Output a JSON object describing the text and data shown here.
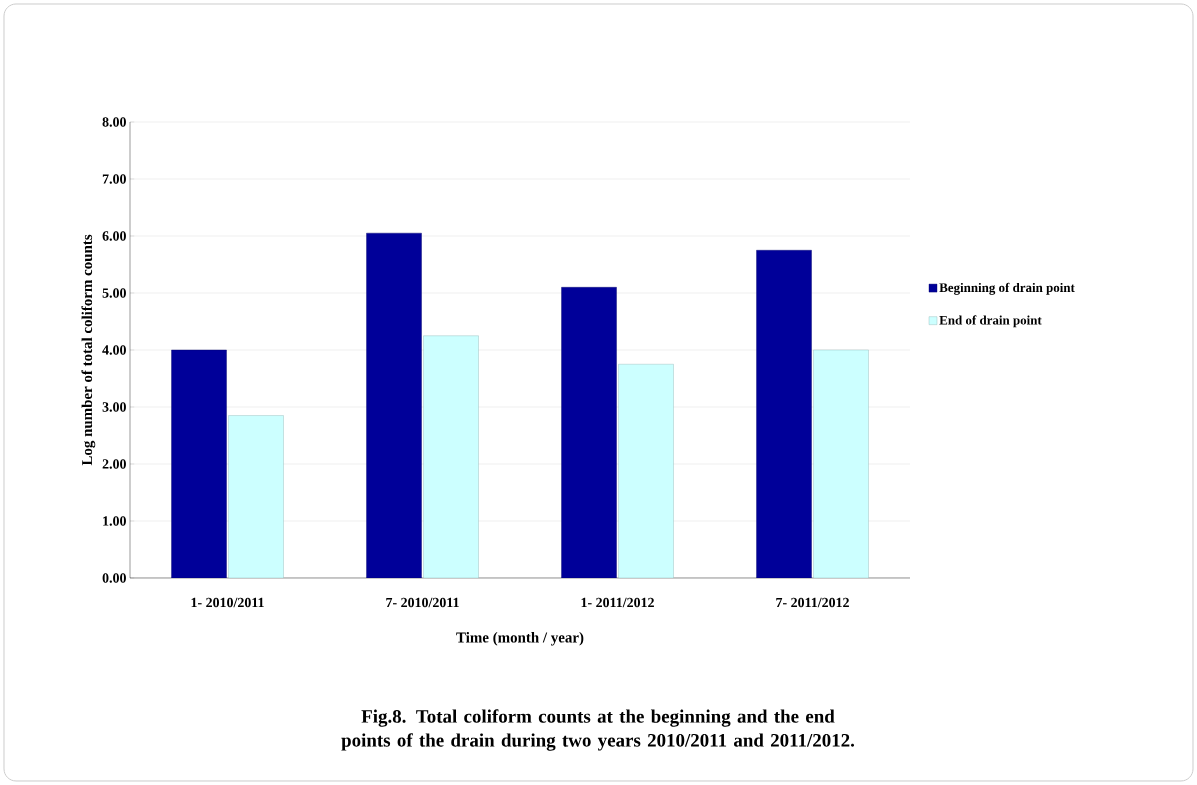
{
  "chart_data": {
    "type": "bar",
    "title": "Fig.8. Total coliform counts at the beginning and the end points of the drain during two years 2010/2011 and 2011/2012.",
    "xlabel": "Time (month / year)",
    "ylabel": "Log number of total coliform counts",
    "categories": [
      "1- 2010/2011",
      "7- 2010/2011",
      "1- 2011/2012",
      "7- 2011/2012"
    ],
    "series": [
      {
        "name": "Beginning of drain point",
        "color": "#000099",
        "values": [
          4.0,
          6.05,
          5.1,
          5.75
        ]
      },
      {
        "name": "End of drain  point",
        "color": "#ccffff",
        "values": [
          2.85,
          4.25,
          3.75,
          4.0
        ]
      }
    ],
    "ylim": [
      0,
      8
    ],
    "yticks": [
      {
        "value": 0,
        "label": "0.00"
      },
      {
        "value": 1,
        "label": "1.00"
      },
      {
        "value": 2,
        "label": "2.00"
      },
      {
        "value": 3,
        "label": "3.00"
      },
      {
        "value": 4,
        "label": "4.00"
      },
      {
        "value": 5,
        "label": "5.00"
      },
      {
        "value": 6,
        "label": "6.00"
      },
      {
        "value": 7,
        "label": "7.00"
      },
      {
        "value": 8,
        "label": "8.00"
      }
    ],
    "grid": "y",
    "legend": "right"
  }
}
